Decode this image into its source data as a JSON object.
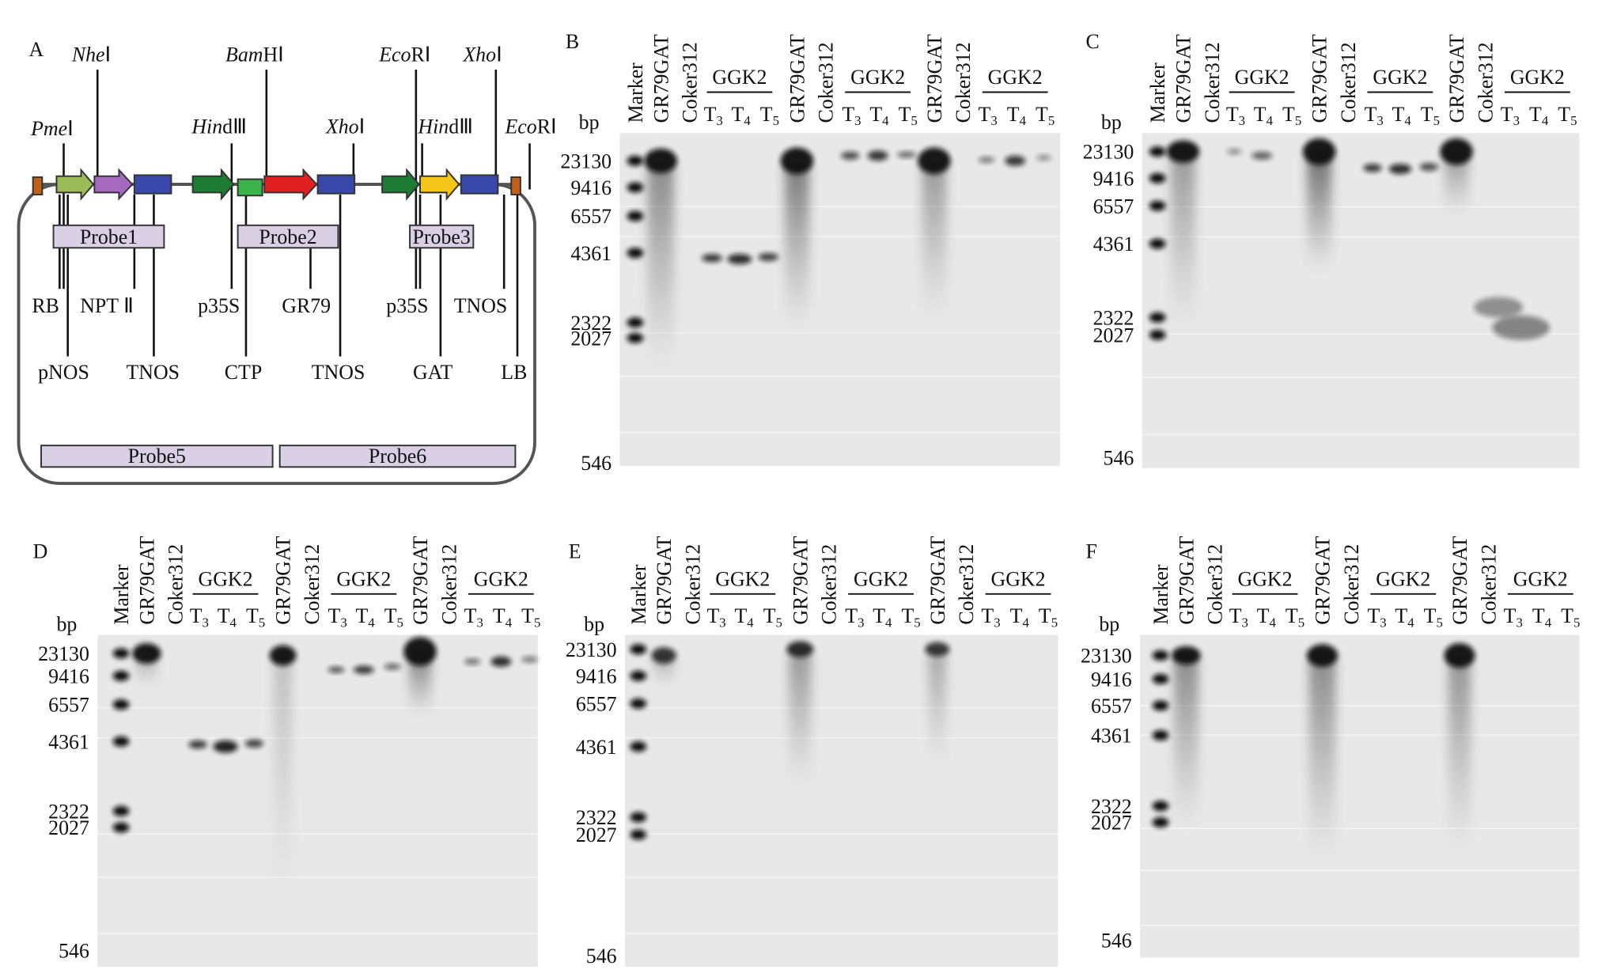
{
  "panel_a": {
    "label": "A",
    "sites": [
      {
        "italic": "Pme",
        "roman": "Ⅰ"
      },
      {
        "italic": "Nhe",
        "roman": "Ⅰ"
      },
      {
        "italic": "Bam",
        "roman": "HⅠ"
      },
      {
        "italic": "Hin",
        "roman": "dⅢ"
      },
      {
        "italic": "Xho",
        "roman": "Ⅰ"
      },
      {
        "italic": "Eco",
        "roman": "RⅠ"
      },
      {
        "italic": "Xho",
        "roman": "Ⅰ"
      },
      {
        "italic": "Hin",
        "roman": "dⅢ"
      },
      {
        "italic": "Eco",
        "roman": "RⅠ"
      }
    ],
    "upper_labels": [
      "RB",
      "NPT Ⅱ",
      "p35S",
      "GR79",
      "p35S",
      "TNOS"
    ],
    "lower_labels": [
      "pNOS",
      "TNOS",
      "CTP",
      "TNOS",
      "GAT",
      "LB"
    ],
    "probes": [
      "Probe1",
      "Probe2",
      "Probe3",
      "Probe5",
      "Probe6"
    ]
  },
  "blots": [
    {
      "label": "B",
      "unit": "bp",
      "markers": [
        23130,
        9416,
        6557,
        4361,
        2322,
        2027,
        546
      ],
      "lanes": [
        "Marker",
        "GR79GAT",
        "Coker312",
        "GR79GAT",
        "Coker312",
        "GR79GAT",
        "Coker312"
      ],
      "groups": [
        "GGK2",
        "GGK2",
        "GGK2"
      ],
      "generations": [
        [
          "T",
          "3"
        ],
        [
          "T",
          "4"
        ],
        [
          "T",
          "5"
        ],
        [
          "T",
          "3"
        ],
        [
          "T",
          "4"
        ],
        [
          "T",
          "5"
        ],
        [
          "T",
          "3"
        ],
        [
          "T",
          "4"
        ],
        [
          "T",
          "5"
        ]
      ]
    },
    {
      "label": "C",
      "unit": "bp",
      "markers": [
        23130,
        9416,
        6557,
        4361,
        2322,
        2027,
        546
      ],
      "lanes": [
        "Marker",
        "GR79GAT",
        "Coker312",
        "GR79GAT",
        "Coker312",
        "GR79GAT",
        "Coker312"
      ],
      "groups": [
        "GGK2",
        "GGK2",
        "GGK2"
      ],
      "generations": [
        [
          "T",
          "3"
        ],
        [
          "T",
          "4"
        ],
        [
          "T",
          "5"
        ],
        [
          "T",
          "3"
        ],
        [
          "T",
          "4"
        ],
        [
          "T",
          "5"
        ],
        [
          "T",
          "3"
        ],
        [
          "T",
          "4"
        ],
        [
          "T",
          "5"
        ]
      ]
    },
    {
      "label": "D",
      "unit": "bp",
      "markers": [
        23130,
        9416,
        6557,
        4361,
        2322,
        2027,
        546
      ],
      "lanes": [
        "Marker",
        "GR79GAT",
        "Coker312",
        "GR79GAT",
        "Coker312",
        "GR79GAT",
        "Coker312"
      ],
      "groups": [
        "GGK2",
        "GGK2",
        "GGK2"
      ],
      "generations": [
        [
          "T",
          "3"
        ],
        [
          "T",
          "4"
        ],
        [
          "T",
          "5"
        ],
        [
          "T",
          "3"
        ],
        [
          "T",
          "4"
        ],
        [
          "T",
          "5"
        ],
        [
          "T",
          "3"
        ],
        [
          "T",
          "4"
        ],
        [
          "T",
          "5"
        ]
      ]
    },
    {
      "label": "E",
      "unit": "bp",
      "markers": [
        23130,
        9416,
        6557,
        4361,
        2322,
        2027,
        546
      ],
      "lanes": [
        "Marker",
        "GR79GAT",
        "Coker312",
        "GR79GAT",
        "Coker312",
        "GR79GAT",
        "Coker312"
      ],
      "groups": [
        "GGK2",
        "GGK2",
        "GGK2"
      ],
      "generations": [
        [
          "T",
          "3"
        ],
        [
          "T",
          "4"
        ],
        [
          "T",
          "5"
        ],
        [
          "T",
          "3"
        ],
        [
          "T",
          "4"
        ],
        [
          "T",
          "5"
        ],
        [
          "T",
          "3"
        ],
        [
          "T",
          "4"
        ],
        [
          "T",
          "5"
        ]
      ]
    },
    {
      "label": "F",
      "unit": "bp",
      "markers": [
        23130,
        9416,
        6557,
        4361,
        2322,
        2027,
        546
      ],
      "lanes": [
        "Marker",
        "GR79GAT",
        "Coker312",
        "GR79GAT",
        "Coker312",
        "GR79GAT",
        "Coker312"
      ],
      "groups": [
        "GGK2",
        "GGK2",
        "GGK2"
      ],
      "generations": [
        [
          "T",
          "3"
        ],
        [
          "T",
          "4"
        ],
        [
          "T",
          "5"
        ],
        [
          "T",
          "3"
        ],
        [
          "T",
          "4"
        ],
        [
          "T",
          "5"
        ],
        [
          "T",
          "3"
        ],
        [
          "T",
          "4"
        ],
        [
          "T",
          "5"
        ]
      ]
    }
  ]
}
